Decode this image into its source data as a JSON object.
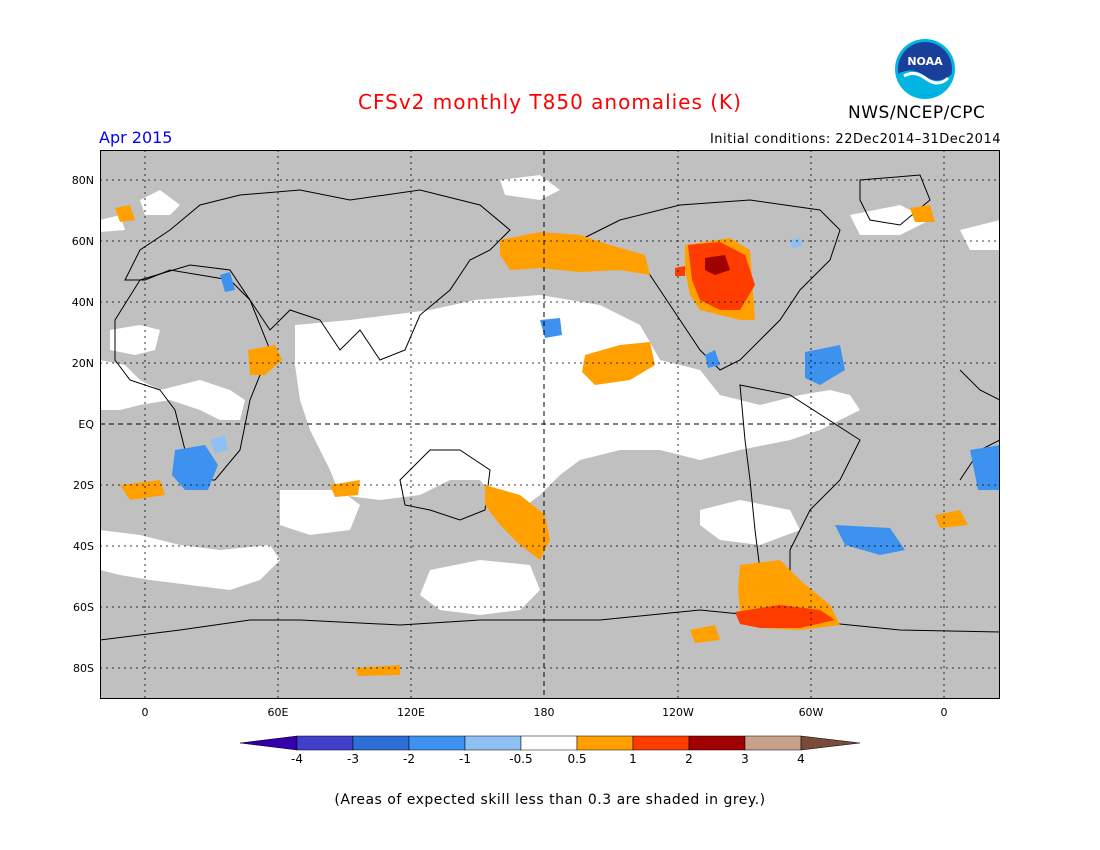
{
  "header": {
    "title": "CFSv2 monthly T850 anomalies (K)",
    "month": "Apr 2015",
    "initial_conditions": "Initial conditions: 22Dec2014–31Dec2014",
    "agency": "NWS/NCEP/CPC",
    "logo_text": "NOAA"
  },
  "colors": {
    "title": "#ff0000",
    "month": "#0000ff",
    "skill_grey": "#c0c0c0",
    "land_outline": "#000000"
  },
  "axes": {
    "lat_labels": [
      "80N",
      "60N",
      "40N",
      "20N",
      "EQ",
      "20S",
      "40S",
      "60S",
      "80S"
    ],
    "lon_labels": [
      "0",
      "60E",
      "120E",
      "180",
      "120W",
      "60W",
      "0"
    ]
  },
  "colorbar": {
    "labels": [
      "-4",
      "-3",
      "-2",
      "-1",
      "-0.5",
      "0.5",
      "1",
      "2",
      "3",
      "4"
    ],
    "colors": [
      "#3300aa",
      "#4040cc",
      "#2d6fd6",
      "#3d92f0",
      "#8ec0f4",
      "#ffffff",
      "#ffa000",
      "#ff3c00",
      "#a00000",
      "#c8a08c",
      "#7a4a3a"
    ]
  },
  "footnote": "(Areas of expected skill less than 0.3 are shaded in grey.)"
}
